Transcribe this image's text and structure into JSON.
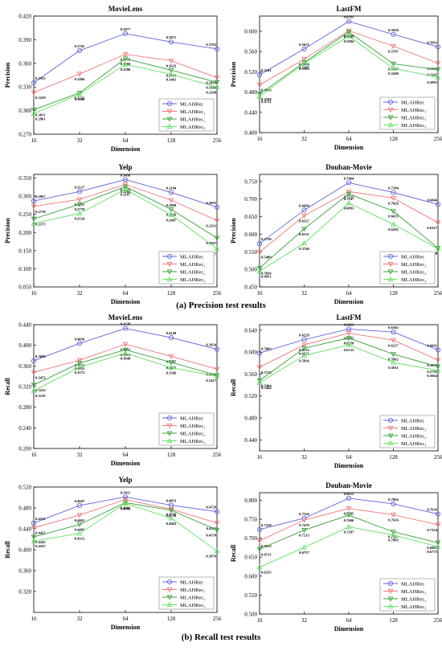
{
  "legend_labels": [
    "MLAHRec",
    "MLAHRec₁",
    "MLAHRec₂",
    "MLAHRec₃"
  ],
  "colors": [
    "#6060e0",
    "#f07878",
    "#38a038",
    "#60e060"
  ],
  "captions": {
    "precision": "(a) Precision test results",
    "recall": "(b) Recall test results"
  },
  "chart_data": [
    {
      "type": "line",
      "title": "MovieLens",
      "xlabel": "Dimension",
      "ylabel": "Precision",
      "x": [
        16,
        32,
        64,
        128,
        256
      ],
      "yticks": [
        "0.270",
        "0.300",
        "0.330",
        "0.360",
        "0.390",
        "0.420"
      ],
      "ylim": [
        0.27,
        0.42
      ],
      "legend": "bottom-right",
      "series": [
        {
          "values": [
            0.3353,
            0.3762,
            0.3977,
            0.3871,
            0.3783
          ],
          "labels": [
            "0.3353",
            "0.3762",
            "0.3977",
            "0.3871",
            "0.3783"
          ]
        },
        {
          "values": [
            0.3229,
            0.3466,
            0.3715,
            0.3633,
            0.3418
          ],
          "labels": [
            "0.3229",
            "0.3466",
            "0.3715",
            "0.3633",
            "0.3418"
          ]
        },
        {
          "values": [
            0.3011,
            0.3225,
            0.366,
            0.3513,
            0.336
          ],
          "labels": [
            "0.3011",
            "0.3225",
            "0.3660",
            "0.3513",
            "0.3360"
          ]
        },
        {
          "values": [
            0.2961,
            0.3208,
            0.3586,
            0.3461,
            0.3298
          ],
          "labels": [
            "0.2961",
            "0.3208",
            "0.3586",
            "0.3461",
            "0.3298"
          ]
        }
      ]
    },
    {
      "type": "line",
      "title": "LastFM",
      "xlabel": "Dimension",
      "ylabel": "Precision",
      "x": [
        16,
        32,
        64,
        128,
        256
      ],
      "yticks": [
        "0.400",
        "0.440",
        "0.480",
        "0.520",
        "0.560",
        "0.600"
      ],
      "ylim": [
        0.4,
        0.63
      ],
      "legend": "bottom-right",
      "series": [
        {
          "values": [
            0.5141,
            0.5651,
            0.6195,
            0.5938,
            0.5691
          ],
          "labels": [
            "0.5141",
            "0.5651",
            "0.6195",
            "0.5938",
            "0.5691"
          ]
        },
        {
          "values": [
            0.4943,
            0.545,
            0.6011,
            0.5707,
            0.5368
          ],
          "labels": [
            "0.4943",
            "0.5450",
            "0.6011",
            "0.5707",
            "0.5368"
          ]
        },
        {
          "values": [
            0.476,
            0.5385,
            0.5987,
            0.5357,
            0.5245
          ],
          "labels": [
            "0.4760",
            "0.5385",
            "0.5987",
            "0.5357",
            "0.5245"
          ]
        },
        {
          "values": [
            0.4711,
            0.5365,
            0.5904,
            0.5268,
            0.5091
          ],
          "labels": [
            "0.4711",
            "0.5365",
            "0.5904",
            "0.5268",
            "0.5091"
          ]
        }
      ]
    },
    {
      "type": "line",
      "title": "Yelp",
      "xlabel": "Dimension",
      "ylabel": "Precision",
      "x": [
        16,
        32,
        64,
        128,
        256
      ],
      "yticks": [
        "0.050",
        "0.100",
        "0.150",
        "0.200",
        "0.250",
        "0.300",
        "0.350"
      ],
      "ylim": [
        0.05,
        0.36
      ],
      "legend": "bottom-right",
      "series": [
        {
          "values": [
            0.2867,
            0.3127,
            0.3458,
            0.3104,
            0.2695
          ],
          "labels": [
            "0.2867",
            "0.3127",
            "0.3458",
            "0.3104",
            "0.2695"
          ]
        },
        {
          "values": [
            0.2718,
            0.2911,
            0.3325,
            0.2889,
            0.2331
          ],
          "labels": [
            "0.2718",
            "0.2911",
            "0.3325",
            "0.2889",
            "0.2331"
          ]
        },
        {
          "values": [
            0.2375,
            0.2778,
            0.3264,
            0.2636,
            0.1847
          ],
          "labels": [
            "0.2375",
            "0.2778",
            "0.3264",
            "0.2636",
            "0.1847"
          ]
        },
        {
          "values": [
            0.2251,
            0.2524,
            0.3187,
            0.2487,
            0.1557
          ],
          "labels": [
            "",
            "0.2524",
            "0.3187",
            "0.2487",
            "0.1557"
          ]
        }
      ]
    },
    {
      "type": "line",
      "title": "Douban-Movie",
      "xlabel": "Dimension",
      "ylabel": "Precision",
      "x": [
        16,
        32,
        64,
        128,
        256
      ],
      "yticks": [
        "0.450",
        "0.500",
        "0.550",
        "0.600",
        "0.650",
        "0.700",
        "0.750"
      ],
      "ylim": [
        0.45,
        0.77
      ],
      "legend": "bottom-right",
      "series": [
        {
          "values": [
            0.573,
            0.6684,
            0.7464,
            0.7184,
            0.6846
          ],
          "labels": [
            "0.5730",
            "0.6684",
            "0.7464",
            "0.7184",
            "0.6846"
          ]
        },
        {
          "values": [
            0.5489,
            0.6527,
            0.7211,
            0.7026,
            0.6327
          ],
          "labels": [
            "0.5489",
            "0.6527",
            "0.7211",
            "0.7026",
            "0.6327"
          ]
        },
        {
          "values": [
            0.5036,
            0.6151,
            0.7147,
            0.6655,
            0.5604
          ],
          "labels": [
            "0.5036",
            "0.6151",
            "0.7147",
            "0.6655",
            "0.5604"
          ]
        },
        {
          "values": [
            0.4951,
            0.574,
            0.6883,
            0.6282,
            0.5587
          ],
          "labels": [
            "0.4951",
            "0.5740",
            "0.6883",
            "0.6282",
            "0.5587"
          ]
        }
      ]
    },
    {
      "type": "line",
      "title": "MovieLens",
      "xlabel": "Dimension",
      "ylabel": "Recall",
      "x": [
        16,
        32,
        64,
        128,
        256
      ],
      "yticks": [
        "0.200",
        "0.240",
        "0.280",
        "0.320",
        "0.360",
        "0.400",
        "0.440"
      ],
      "ylim": [
        0.2,
        0.44
      ],
      "legend": "bottom-right",
      "series": [
        {
          "values": [
            0.3699,
            0.4036,
            0.4328,
            0.4149,
            0.3924
          ],
          "labels": [
            "0.3699",
            "0.4036",
            "0.4328",
            "0.4149",
            "0.3924"
          ]
        },
        {
          "values": [
            0.3475,
            0.3711,
            0.4021,
            0.3787,
            0.3538
          ],
          "labels": [
            "0.3475",
            "0.3711",
            "0.4021",
            "0.3787",
            "0.3538"
          ]
        },
        {
          "values": [
            0.3232,
            0.3655,
            0.3913,
            0.3671,
            0.3417
          ],
          "labels": [
            "0.3232",
            "0.3655",
            "0.3913",
            "0.3671",
            "0.3417"
          ]
        },
        {
          "values": [
            0.3119,
            0.3575,
            0.3849,
            0.3566,
            0.34
          ],
          "labels": [
            "0.3119",
            "0.3575",
            "0.3849",
            "0.3566",
            ""
          ]
        }
      ]
    },
    {
      "type": "line",
      "title": "LastFM",
      "xlabel": "Dimension",
      "ylabel": "Recall",
      "x": [
        16,
        32,
        64,
        128,
        256
      ],
      "yticks": [
        "0.440",
        "0.480",
        "0.520",
        "0.560",
        "0.600",
        "0.640"
      ],
      "ylim": [
        0.42,
        0.65
      ],
      "legend": "bottom-right",
      "series": [
        {
          "values": [
            0.5983,
            0.6229,
            0.6421,
            0.6365,
            0.6041
          ],
          "labels": [
            "0.5983",
            "0.6229",
            "0.6421",
            "0.6365",
            "0.6041"
          ]
        },
        {
          "values": [
            0.5726,
            0.6133,
            0.6345,
            0.6217,
            0.5855
          ],
          "labels": [
            "0.5726",
            "0.6133",
            "0.6345",
            "0.6217",
            "0.5855"
          ]
        },
        {
          "values": [
            0.5484,
            0.6071,
            0.6258,
            0.5962,
            0.5736
          ],
          "labels": [
            "0.5484",
            "0.6071",
            "0.6258",
            "0.5962",
            "0.5736"
          ]
        },
        {
          "values": [
            0.5444,
            0.5936,
            0.6133,
            0.5811,
            0.5664
          ],
          "labels": [
            "0.5444",
            "0.5936",
            "0.6133",
            "0.5811",
            "0.5664"
          ]
        }
      ]
    },
    {
      "type": "line",
      "title": "Yelp",
      "xlabel": "Dimension",
      "ylabel": "Recall",
      "x": [
        16,
        32,
        64,
        128,
        256
      ],
      "yticks": [
        "0.320",
        "0.360",
        "0.400",
        "0.440",
        "0.480",
        "0.520"
      ],
      "ylim": [
        0.28,
        0.52
      ],
      "legend": "bottom-right",
      "series": [
        {
          "values": [
            0.4511,
            0.4847,
            0.5011,
            0.4853,
            0.4729
          ],
          "labels": [
            "0.4511",
            "0.4847",
            "0.5011",
            "0.4853",
            "0.4729"
          ]
        },
        {
          "values": [
            0.4421,
            0.4663,
            0.496,
            0.4776,
            0.4511
          ],
          "labels": [
            "0.4421",
            "0.4663",
            "",
            "0.4776",
            "0.4511"
          ]
        },
        {
          "values": [
            0.4245,
            0.4483,
            0.4902,
            0.4756,
            0.4378
          ],
          "labels": [
            "0.4245",
            "0.4483",
            "0.4902",
            "0.4756",
            "0.4378"
          ]
        },
        {
          "values": [
            0.4167,
            0.4312,
            0.4886,
            0.4603,
            0.3976
          ],
          "labels": [
            "0.4167",
            "0.4312",
            "0.4886",
            "0.4603",
            "0.3976"
          ]
        }
      ]
    },
    {
      "type": "line",
      "title": "Douban-Movie",
      "xlabel": "Dimension",
      "ylabel": "Recall",
      "x": [
        16,
        32,
        64,
        128,
        256
      ],
      "yticks": [
        "0.500",
        "0.550",
        "0.600",
        "0.650",
        "0.700",
        "0.750",
        "0.800"
      ],
      "ylim": [
        0.5,
        0.82
      ],
      "legend": "bottom-right",
      "series": [
        {
          "values": [
            0.7228,
            0.7526,
            0.8052,
            0.7904,
            0.7636
          ],
          "labels": [
            "0.7228",
            "0.7526",
            "0.8052",
            "0.7904",
            "0.7636"
          ]
        },
        {
          "values": [
            0.6933,
            0.7479,
            0.7785,
            0.7616,
            0.7354
          ],
          "labels": [
            "0.6933",
            "0.7479",
            "0.7785",
            "0.7616",
            "0.7354"
          ]
        },
        {
          "values": [
            0.6711,
            0.7213,
            0.7606,
            0.7167,
            0.6882
          ],
          "labels": [
            "0.6711",
            "0.7213",
            "0.7606",
            "0.7167",
            "0.6882"
          ]
        },
        {
          "values": [
            0.6235,
            0.6757,
            0.7297,
            0.7083,
            0.6775
          ],
          "labels": [
            "0.6235",
            "0.6757",
            "0.7297",
            "0.7083",
            "0.6775"
          ]
        }
      ]
    }
  ]
}
